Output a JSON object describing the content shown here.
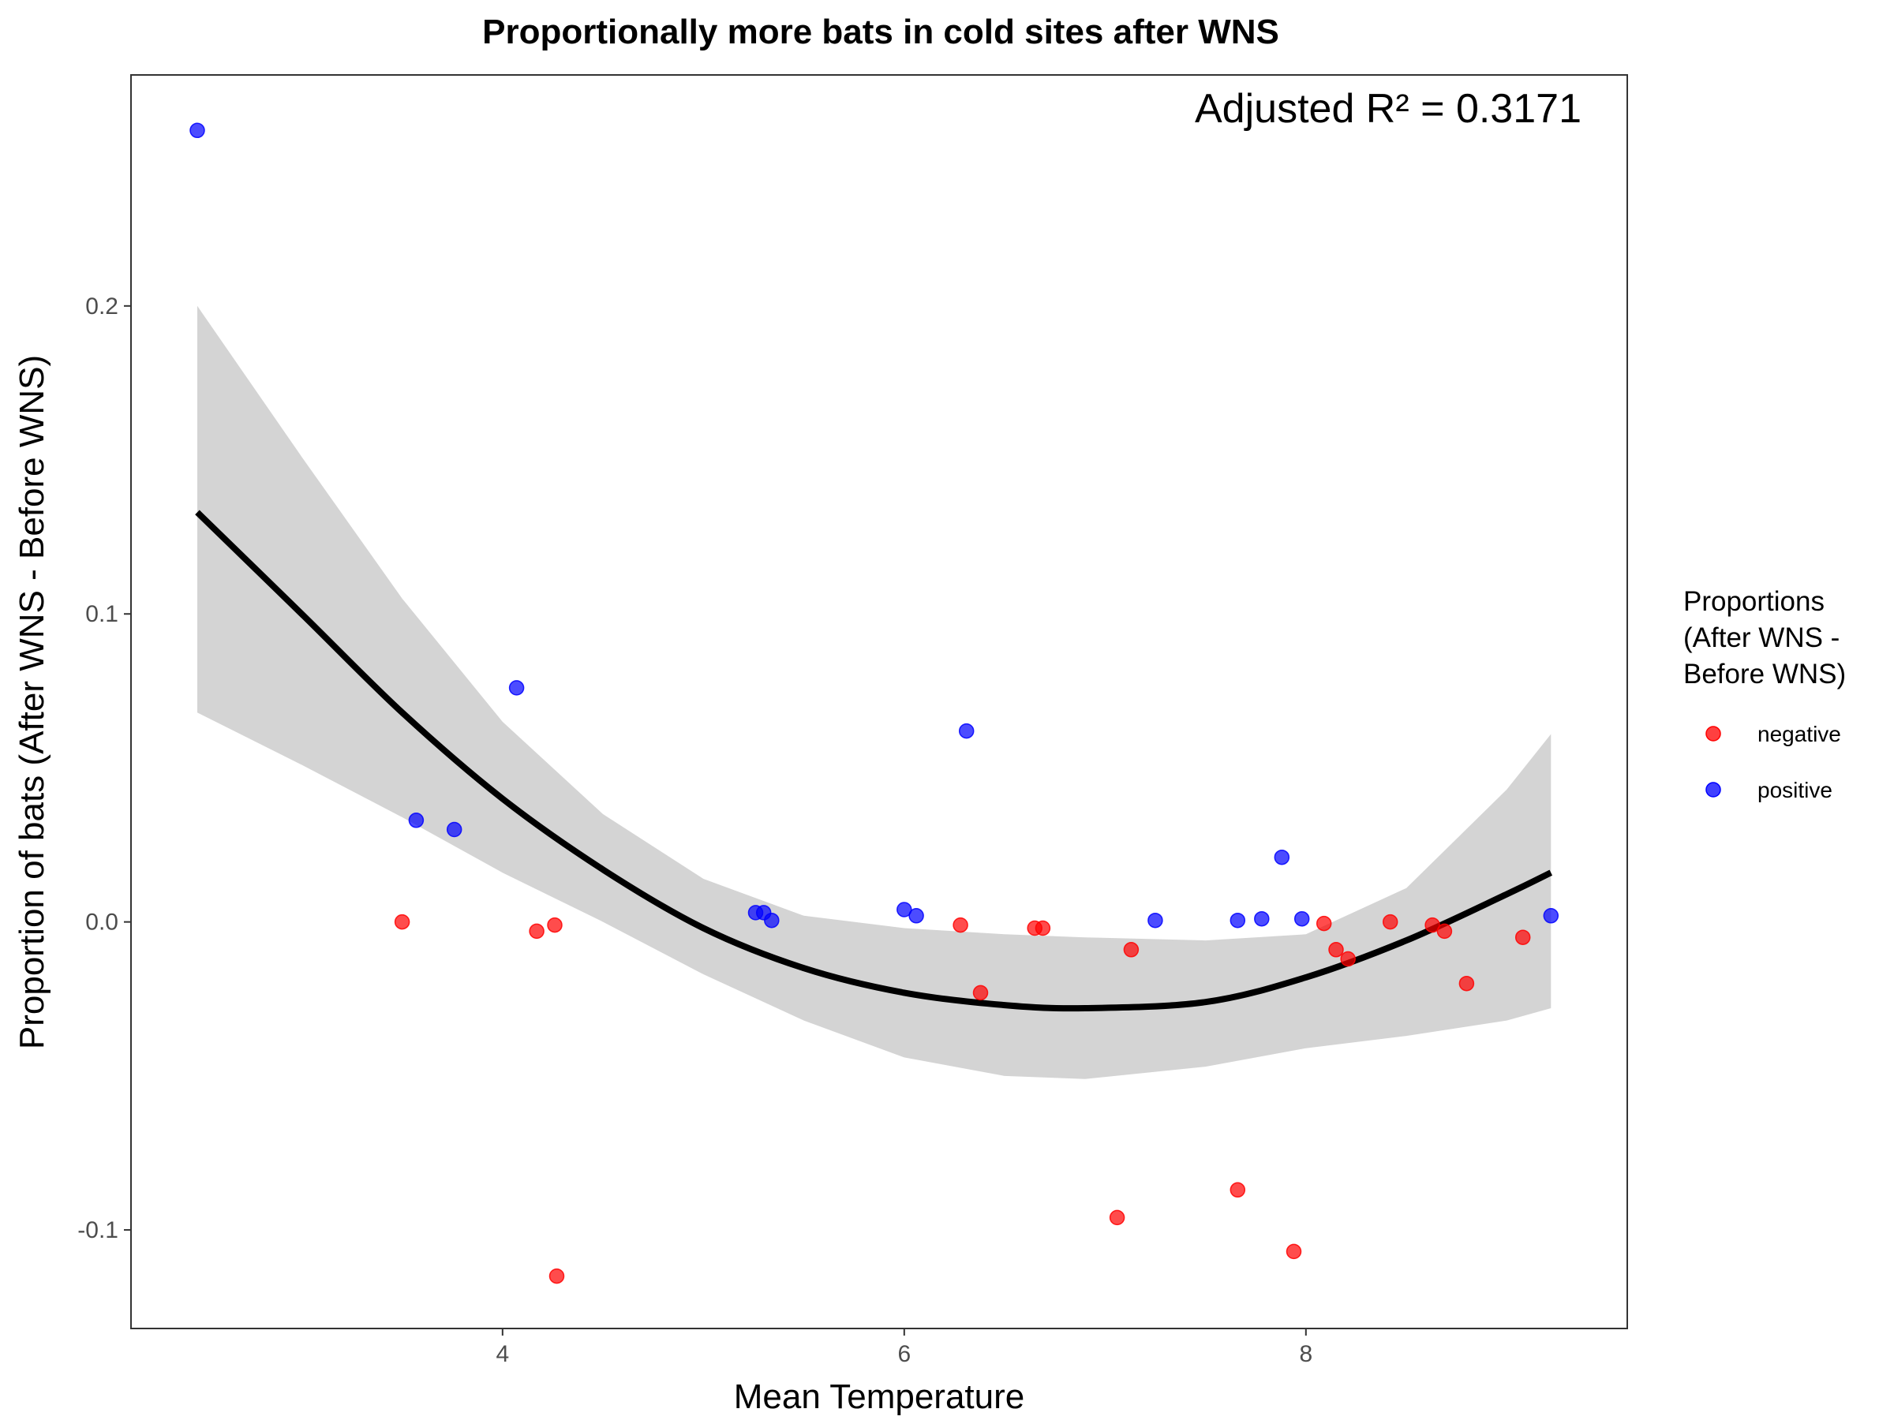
{
  "chart_data": {
    "type": "scatter",
    "title": "Proportionally more bats in cold sites after WNS",
    "xlabel": "Mean Temperature",
    "ylabel": "Proportion of bats (After WNS - Before WNS)",
    "annotation": "Adjusted R² = 0.3171",
    "xlim": [
      2.15,
      9.6
    ],
    "ylim": [
      -0.132,
      0.275
    ],
    "x_ticks": [
      4,
      6,
      8
    ],
    "x_tick_labels": [
      "4",
      "6",
      "8"
    ],
    "y_ticks": [
      -0.1,
      0.0,
      0.1,
      0.2
    ],
    "y_tick_labels": [
      "-0.1",
      "0.0",
      "0.1",
      "0.2"
    ],
    "grid": false,
    "legend": {
      "title_lines": [
        "Proportions",
        "(After WNS -",
        "Before WNS)"
      ],
      "placement": "right",
      "entries": [
        {
          "label": "negative",
          "color": "#ff0000"
        },
        {
          "label": "positive",
          "color": "#0000ff"
        }
      ]
    },
    "series": [
      {
        "name": "negative",
        "color": "#ff0000",
        "points": [
          [
            3.5,
            0.0
          ],
          [
            4.17,
            -0.003
          ],
          [
            4.26,
            -0.001
          ],
          [
            4.27,
            -0.115
          ],
          [
            6.28,
            -0.001
          ],
          [
            6.38,
            -0.023
          ],
          [
            6.65,
            -0.002
          ],
          [
            6.69,
            -0.002
          ],
          [
            7.06,
            -0.096
          ],
          [
            7.13,
            -0.009
          ],
          [
            7.66,
            -0.087
          ],
          [
            7.94,
            -0.107
          ],
          [
            8.09,
            -0.0005
          ],
          [
            8.15,
            -0.009
          ],
          [
            8.21,
            -0.012
          ],
          [
            8.42,
            0.0
          ],
          [
            8.63,
            -0.001
          ],
          [
            8.69,
            -0.003
          ],
          [
            8.8,
            -0.02
          ],
          [
            9.08,
            -0.005
          ]
        ]
      },
      {
        "name": "positive",
        "color": "#0000ff",
        "points": [
          [
            2.48,
            0.257
          ],
          [
            3.57,
            0.033
          ],
          [
            3.76,
            0.03
          ],
          [
            4.07,
            0.076
          ],
          [
            5.26,
            0.003
          ],
          [
            5.3,
            0.003
          ],
          [
            5.34,
            0.0005
          ],
          [
            6.0,
            0.004
          ],
          [
            6.06,
            0.002
          ],
          [
            6.31,
            0.062
          ],
          [
            7.25,
            0.0005
          ],
          [
            7.66,
            0.0005
          ],
          [
            7.78,
            0.001
          ],
          [
            7.88,
            0.021
          ],
          [
            7.98,
            0.001
          ],
          [
            9.22,
            0.002
          ]
        ]
      }
    ],
    "fit": {
      "type": "quadratic",
      "color": "#000000",
      "x": [
        2.48,
        3.0,
        3.5,
        4.0,
        4.5,
        5.0,
        5.5,
        6.0,
        6.5,
        6.9,
        7.5,
        8.0,
        8.5,
        9.0,
        9.22
      ],
      "y": [
        0.133,
        0.1,
        0.068,
        0.04,
        0.017,
        -0.002,
        -0.015,
        -0.023,
        -0.027,
        -0.028,
        -0.026,
        -0.018,
        -0.006,
        0.009,
        0.016
      ],
      "ci_lower": [
        0.068,
        0.051,
        0.034,
        0.016,
        0.0,
        -0.017,
        -0.032,
        -0.044,
        -0.05,
        -0.051,
        -0.047,
        -0.041,
        -0.037,
        -0.032,
        -0.028
      ],
      "ci_upper": [
        0.2,
        0.151,
        0.105,
        0.065,
        0.035,
        0.014,
        0.002,
        -0.002,
        -0.004,
        -0.005,
        -0.006,
        -0.004,
        0.011,
        0.043,
        0.061
      ],
      "band_color": "#d4d4d4"
    }
  }
}
